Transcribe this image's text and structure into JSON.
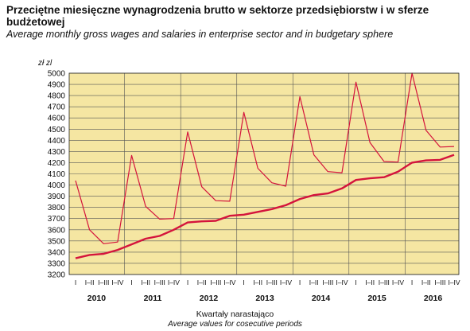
{
  "title_pl": "Przeciętne miesięczne wynagrodzenia brutto w sektorze przedsiębiorstw i w sferze budżetowej",
  "title_en": "Average monthly gross wages and salaries in enterprise sector and in budgetary sphere",
  "unit": "zł zl",
  "xlabel_pl": "Kwartały narastająco",
  "xlabel_en": "Average values for cosecutive periods",
  "colors": {
    "background": "#f5e6a2",
    "line": "#d4143c",
    "grid": "#555555"
  },
  "chart_data": {
    "type": "line",
    "ylim": [
      3200,
      5000
    ],
    "yticks": [
      3200,
      3300,
      3400,
      3500,
      3600,
      3700,
      3800,
      3900,
      4000,
      4100,
      4200,
      4300,
      4400,
      4500,
      4600,
      4700,
      4800,
      4900,
      5000
    ],
    "grid": true,
    "years": [
      "2010",
      "2011",
      "2012",
      "2013",
      "2014",
      "2015",
      "2016"
    ],
    "quarter_labels": [
      "I",
      "I–II",
      "I–III",
      "I–IV"
    ],
    "x": [
      "2010 I",
      "2010 I–II",
      "2010 I–III",
      "2010 I–IV",
      "2011 I",
      "2011 I–II",
      "2011 I–III",
      "2011 I–IV",
      "2012 I",
      "2012 I–II",
      "2012 I–III",
      "2012 I–IV",
      "2013 I",
      "2013 I–II",
      "2013 I–III",
      "2013 I–IV",
      "2014 I",
      "2014 I–II",
      "2014 I–III",
      "2014 I–IV",
      "2015 I",
      "2015 I–II",
      "2015 I–III",
      "2015 I–IV",
      "2016 I",
      "2016 I–II",
      "2016 I–III",
      "2016 I–IV"
    ],
    "series": [
      {
        "values": [
          3345,
          3375,
          3385,
          3420,
          3470,
          3520,
          3545,
          3600,
          3665,
          3675,
          3680,
          3725,
          3735,
          3760,
          3785,
          3820,
          3875,
          3910,
          3925,
          3970,
          4045,
          4060,
          4070,
          4120,
          4200,
          4220,
          4225,
          4270
        ]
      },
      {
        "values": [
          4040,
          3600,
          3475,
          3490,
          4265,
          3810,
          3695,
          3700,
          4475,
          3985,
          3860,
          3855,
          4650,
          4150,
          4020,
          3990,
          4790,
          4270,
          4120,
          4110,
          4920,
          4380,
          4210,
          4205,
          5000,
          4490,
          4340,
          4345
        ]
      }
    ]
  }
}
